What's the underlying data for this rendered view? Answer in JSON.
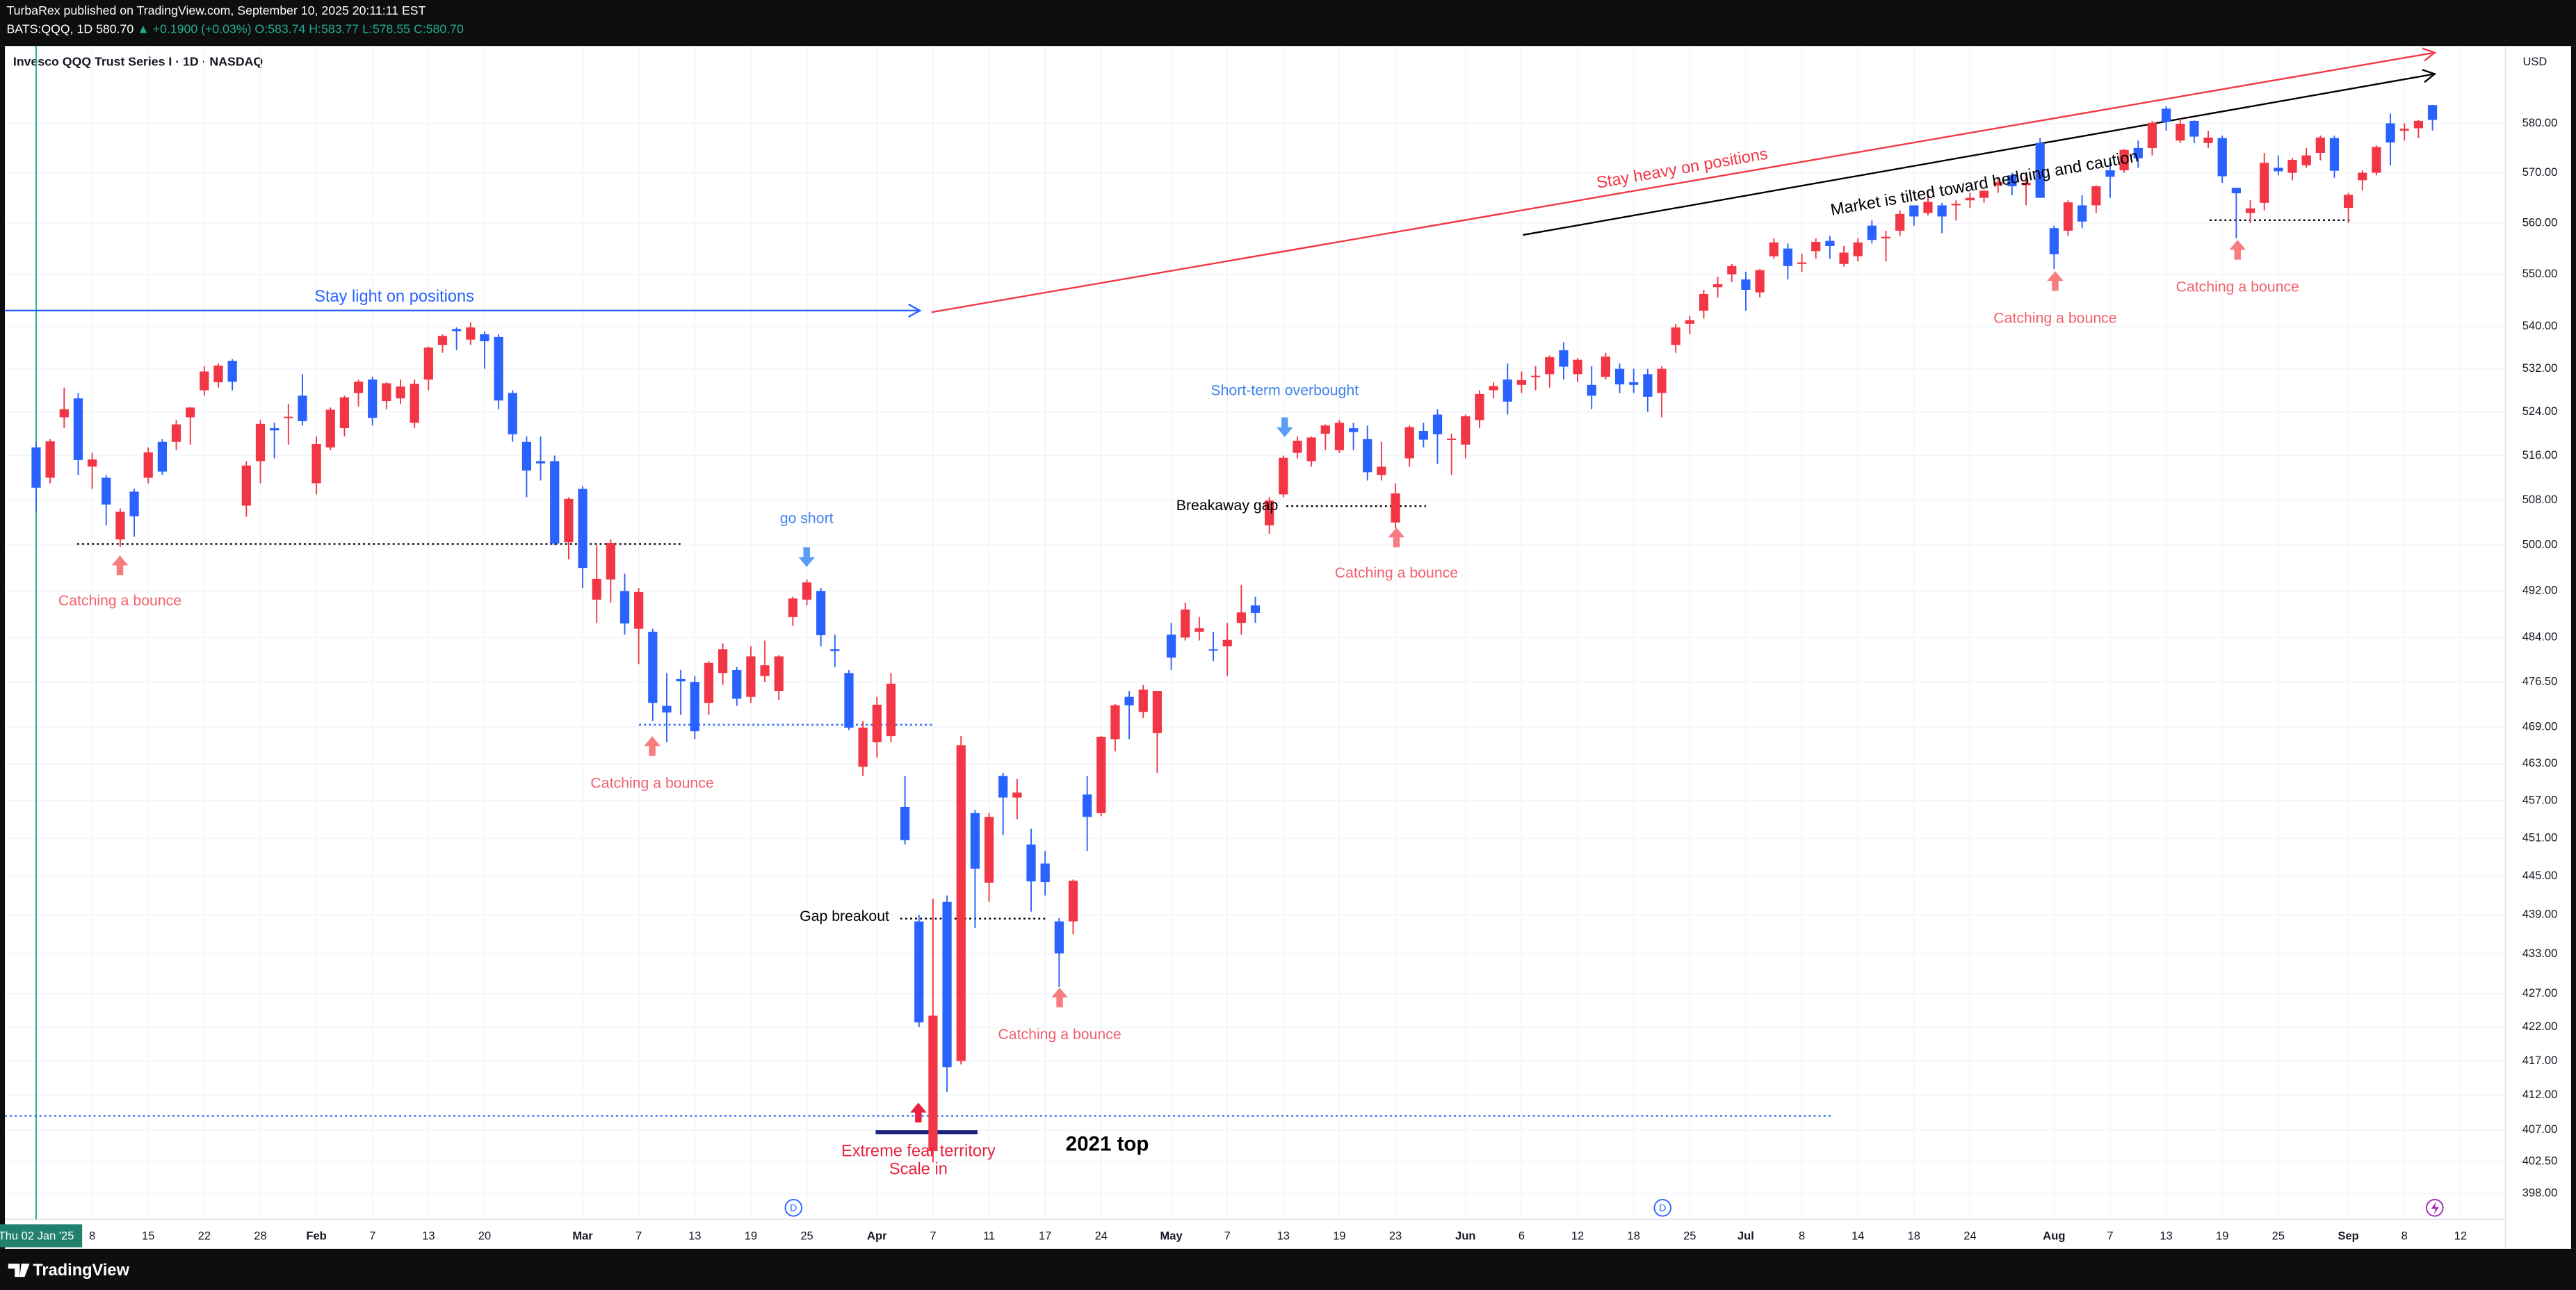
{
  "chart_data": {
    "type": "candlestick",
    "publisher": "TurbaRex published on TradingView.com, September 10, 2025 20:11:11 EST",
    "symbol": "BATS:QQQ, 1D",
    "last": "580.70",
    "change": "▲ +0.1900 (+0.03%)",
    "ohlc_header": [
      "O:583.74",
      "H:583.77",
      "L:578.55",
      "C:580.70"
    ],
    "title": "Invesco QQQ Trust Series I · 1D · NASDAQ",
    "currency": "USD",
    "brand": "TradingView",
    "up_color": "#f23645",
    "down_color": "#2962ff",
    "log_scale": true,
    "grid": true,
    "ylim": [
      394.4,
      596.0
    ],
    "yticks": [
      {
        "value": 580,
        "label": "580.00"
      },
      {
        "value": 570,
        "label": "570.00"
      },
      {
        "value": 560,
        "label": "560.00"
      },
      {
        "value": 550,
        "label": "550.00"
      },
      {
        "value": 540,
        "label": "540.00"
      },
      {
        "value": 532,
        "label": "532.00"
      },
      {
        "value": 524,
        "label": "524.00"
      },
      {
        "value": 516,
        "label": "516.00"
      },
      {
        "value": 508,
        "label": "508.00"
      },
      {
        "value": 500,
        "label": "500.00"
      },
      {
        "value": 492,
        "label": "492.00"
      },
      {
        "value": 484,
        "label": "484.00"
      },
      {
        "value": 476.5,
        "label": "476.50"
      },
      {
        "value": 469,
        "label": "469.00"
      },
      {
        "value": 463,
        "label": "463.00"
      },
      {
        "value": 457,
        "label": "457.00"
      },
      {
        "value": 451,
        "label": "451.00"
      },
      {
        "value": 445,
        "label": "445.00"
      },
      {
        "value": 439,
        "label": "439.00"
      },
      {
        "value": 433,
        "label": "433.00"
      },
      {
        "value": 427,
        "label": "427.00"
      },
      {
        "value": 422,
        "label": "422.00"
      },
      {
        "value": 417,
        "label": "417.00"
      },
      {
        "value": 412,
        "label": "412.00"
      },
      {
        "value": 407,
        "label": "407.00"
      },
      {
        "value": 402.5,
        "label": "402.50"
      },
      {
        "value": 398,
        "label": "398.00"
      }
    ],
    "categories": [
      "Thu 02 Jan '25",
      null,
      null,
      null,
      "8",
      null,
      null,
      null,
      "15",
      null,
      null,
      null,
      "22",
      null,
      null,
      null,
      "28",
      null,
      null,
      null,
      "Feb",
      null,
      null,
      null,
      "7",
      null,
      null,
      null,
      "13",
      null,
      null,
      null,
      "20",
      null,
      null,
      null,
      null,
      null,
      null,
      "Mar",
      null,
      null,
      null,
      "7",
      null,
      null,
      null,
      "13",
      null,
      null,
      null,
      "19",
      null,
      null,
      null,
      "25",
      null,
      null,
      null,
      null,
      "Apr",
      null,
      null,
      null,
      "7",
      null,
      null,
      null,
      "11",
      null,
      null,
      null,
      "17",
      null,
      null,
      null,
      "24",
      null,
      null,
      null,
      null,
      "May",
      null,
      null,
      null,
      "7",
      null,
      null,
      null,
      "13",
      null,
      null,
      null,
      "19",
      null,
      null,
      null,
      "23",
      null,
      null,
      null,
      null,
      "Jun",
      null,
      null,
      null,
      "6",
      null,
      null,
      null,
      "12",
      null,
      null,
      null,
      "18",
      null,
      null,
      null,
      "25",
      null,
      null,
      null,
      "Jul",
      null,
      null,
      null,
      "8",
      null,
      null,
      null,
      "14",
      null,
      null,
      null,
      "18",
      null,
      null,
      null,
      "24",
      null,
      null,
      null,
      null,
      null,
      "Aug",
      null,
      null,
      null,
      "7",
      null,
      null,
      null,
      "13",
      null,
      null,
      null,
      "19",
      null,
      null,
      null,
      "25",
      null,
      null,
      null,
      null,
      "Sep",
      null,
      null,
      null,
      "8",
      null,
      null,
      null,
      "12"
    ],
    "candles": [
      [
        517.5,
        518.5,
        506.0,
        510.2
      ],
      [
        512.0,
        519.0,
        511.0,
        518.6
      ],
      [
        523.0,
        528.5,
        521.0,
        524.5
      ],
      [
        526.5,
        527.5,
        512.5,
        515.2
      ],
      [
        514.0,
        516.5,
        510.0,
        515.3
      ],
      [
        512.0,
        512.5,
        503.5,
        507.2
      ],
      [
        501.0,
        506.5,
        499.7,
        505.9
      ],
      [
        509.5,
        510.0,
        501.5,
        505.1
      ],
      [
        512.0,
        517.5,
        511.0,
        516.6
      ],
      [
        518.5,
        519.0,
        512.5,
        513.1
      ],
      [
        518.5,
        522.5,
        517.0,
        521.7
      ],
      [
        523.0,
        524.9,
        518.0,
        524.8
      ],
      [
        528.0,
        532.5,
        527.0,
        531.5
      ],
      [
        529.5,
        533.0,
        528.5,
        532.6
      ],
      [
        533.5,
        533.8,
        528.0,
        529.6
      ],
      [
        507.0,
        515.0,
        505.0,
        514.2
      ],
      [
        515.0,
        522.5,
        511.0,
        521.8
      ],
      [
        521.0,
        522.0,
        515.5,
        520.6
      ],
      [
        523.0,
        525.5,
        518.0,
        523.1
      ],
      [
        527.0,
        531.0,
        521.5,
        522.3
      ],
      [
        511.0,
        519.5,
        509.0,
        518.1
      ],
      [
        517.5,
        524.8,
        517.0,
        524.4
      ],
      [
        521.0,
        527.0,
        519.5,
        526.7
      ],
      [
        527.5,
        530.0,
        525.0,
        529.6
      ],
      [
        530.0,
        530.5,
        521.5,
        522.9
      ],
      [
        526.0,
        529.5,
        524.5,
        529.3
      ],
      [
        526.5,
        530.0,
        525.5,
        528.7
      ],
      [
        522.0,
        530.0,
        521.0,
        529.2
      ],
      [
        530.0,
        536.2,
        528.0,
        536.0
      ],
      [
        536.5,
        538.5,
        535.0,
        538.2
      ],
      [
        539.5,
        539.8,
        535.5,
        539.1
      ],
      [
        537.5,
        540.8,
        536.5,
        539.8
      ],
      [
        538.5,
        539.0,
        532.0,
        537.2
      ],
      [
        538.0,
        538.5,
        524.5,
        526.1
      ],
      [
        527.5,
        528.0,
        518.5,
        519.9
      ],
      [
        518.5,
        519.5,
        508.5,
        513.3
      ],
      [
        515.0,
        519.5,
        511.5,
        514.6
      ],
      [
        515.0,
        516.0,
        500.0,
        500.3
      ],
      [
        500.5,
        508.5,
        497.5,
        508.2
      ],
      [
        510.0,
        510.5,
        492.5,
        496.0
      ],
      [
        490.5,
        500.0,
        486.5,
        494.1
      ],
      [
        494.0,
        501.0,
        490.0,
        500.4
      ],
      [
        492.0,
        495.0,
        484.5,
        486.4
      ],
      [
        485.5,
        492.5,
        479.5,
        491.8
      ],
      [
        485.0,
        485.5,
        470.0,
        473.0
      ],
      [
        472.5,
        478.0,
        466.5,
        471.4
      ],
      [
        477.0,
        478.5,
        471.0,
        476.6
      ],
      [
        476.5,
        477.5,
        467.0,
        468.3
      ],
      [
        473.0,
        480.0,
        471.0,
        479.7
      ],
      [
        478.0,
        483.0,
        476.0,
        482.0
      ],
      [
        478.5,
        479.0,
        472.5,
        473.7
      ],
      [
        474.0,
        482.5,
        473.0,
        480.8
      ],
      [
        477.5,
        483.5,
        476.5,
        479.3
      ],
      [
        475.0,
        481.0,
        473.5,
        480.8
      ],
      [
        487.5,
        491.0,
        486.0,
        490.7
      ],
      [
        490.5,
        494.0,
        489.5,
        493.5
      ],
      [
        492.0,
        492.5,
        482.5,
        484.4
      ],
      [
        482.0,
        484.5,
        479.0,
        481.7
      ],
      [
        478.0,
        478.5,
        468.5,
        468.9
      ],
      [
        462.5,
        470.0,
        461.0,
        468.9
      ],
      [
        466.5,
        474.0,
        464.0,
        472.7
      ],
      [
        467.5,
        478.0,
        466.5,
        476.2
      ],
      [
        456.0,
        461.0,
        450.0,
        450.7
      ],
      [
        438.0,
        439.0,
        422.0,
        422.7
      ],
      [
        404.0,
        441.5,
        402.4,
        423.7
      ],
      [
        441.0,
        442.0,
        412.5,
        416.1
      ],
      [
        417.0,
        467.5,
        416.5,
        466.0
      ],
      [
        455.0,
        455.5,
        437.0,
        446.2
      ],
      [
        444.0,
        455.0,
        441.0,
        454.4
      ],
      [
        461.0,
        461.5,
        451.5,
        457.5
      ],
      [
        457.5,
        460.5,
        454.0,
        458.3
      ],
      [
        450.0,
        452.5,
        439.5,
        444.2
      ],
      [
        447.0,
        449.0,
        442.0,
        444.1
      ],
      [
        438.0,
        438.5,
        428.0,
        433.1
      ],
      [
        438.0,
        444.5,
        436.0,
        444.3
      ],
      [
        458.0,
        461.0,
        449.0,
        454.4
      ],
      [
        455.0,
        467.5,
        454.5,
        467.4
      ],
      [
        467.0,
        472.8,
        465.0,
        472.6
      ],
      [
        474.0,
        475.0,
        467.0,
        472.6
      ],
      [
        471.5,
        476.0,
        470.5,
        475.2
      ],
      [
        468.0,
        475.0,
        461.5,
        475.0
      ],
      [
        484.5,
        486.5,
        478.5,
        480.6
      ],
      [
        484.0,
        490.0,
        483.5,
        488.8
      ],
      [
        485.0,
        487.5,
        483.5,
        485.6
      ],
      [
        482.0,
        485.0,
        480.0,
        481.9
      ],
      [
        482.5,
        486.5,
        477.5,
        483.6
      ],
      [
        486.5,
        493.0,
        484.5,
        488.3
      ],
      [
        489.5,
        491.0,
        486.5,
        488.2
      ],
      [
        503.5,
        508.5,
        502.0,
        507.9
      ],
      [
        509.0,
        516.0,
        508.5,
        515.6
      ],
      [
        516.5,
        519.5,
        515.5,
        518.7
      ],
      [
        515.0,
        519.5,
        514.0,
        519.3
      ],
      [
        520.0,
        521.7,
        517.0,
        521.5
      ],
      [
        517.0,
        522.5,
        516.5,
        522.0
      ],
      [
        521.0,
        522.0,
        517.0,
        520.3
      ],
      [
        519.0,
        521.5,
        511.5,
        513.0
      ],
      [
        512.5,
        518.5,
        511.5,
        514.0
      ],
      [
        504.0,
        511.0,
        503.0,
        509.2
      ],
      [
        515.5,
        521.5,
        514.0,
        521.2
      ],
      [
        520.5,
        522.0,
        517.5,
        518.9
      ],
      [
        523.5,
        524.5,
        514.5,
        519.9
      ],
      [
        519.0,
        520.0,
        512.5,
        519.1
      ],
      [
        518.0,
        523.5,
        515.5,
        523.2
      ],
      [
        522.5,
        528.0,
        521.0,
        527.3
      ],
      [
        528.0,
        529.5,
        526.5,
        528.8
      ],
      [
        530.0,
        533.0,
        523.5,
        525.9
      ],
      [
        529.0,
        531.5,
        527.5,
        529.9
      ],
      [
        530.5,
        532.5,
        528.0,
        530.7
      ],
      [
        531.0,
        534.5,
        528.5,
        534.2
      ],
      [
        535.5,
        537.0,
        530.0,
        532.4
      ],
      [
        531.0,
        534.0,
        529.5,
        533.7
      ],
      [
        529.0,
        532.5,
        524.5,
        527.0
      ],
      [
        530.5,
        535.0,
        530.0,
        534.3
      ],
      [
        532.0,
        533.0,
        527.5,
        529.1
      ],
      [
        529.5,
        532.0,
        527.5,
        529.0
      ],
      [
        531.0,
        532.0,
        524.0,
        526.8
      ],
      [
        527.5,
        532.5,
        523.0,
        532.0
      ],
      [
        536.5,
        540.5,
        535.0,
        539.8
      ],
      [
        540.5,
        542.0,
        538.5,
        541.2
      ],
      [
        543.0,
        547.0,
        541.5,
        546.2
      ],
      [
        547.5,
        549.5,
        545.5,
        548.1
      ],
      [
        550.0,
        552.0,
        548.5,
        551.6
      ],
      [
        549.0,
        550.5,
        543.0,
        547.0
      ],
      [
        546.5,
        551.0,
        545.5,
        550.8
      ],
      [
        553.5,
        557.0,
        553.0,
        556.2
      ],
      [
        555.0,
        556.0,
        549.0,
        551.6
      ],
      [
        552.0,
        554.0,
        550.5,
        552.3
      ],
      [
        554.5,
        557.0,
        553.0,
        556.3
      ],
      [
        556.5,
        557.5,
        553.0,
        555.5
      ],
      [
        552.0,
        555.5,
        551.5,
        554.2
      ],
      [
        553.5,
        557.0,
        552.5,
        556.2
      ],
      [
        559.5,
        560.5,
        556.0,
        556.7
      ],
      [
        557.0,
        558.5,
        552.5,
        557.3
      ],
      [
        558.5,
        562.5,
        557.5,
        561.8
      ],
      [
        563.5,
        563.5,
        559.5,
        561.3
      ],
      [
        562.0,
        566.5,
        561.5,
        564.2
      ],
      [
        563.5,
        564.0,
        558.0,
        561.3
      ],
      [
        563.5,
        564.5,
        560.5,
        563.8
      ],
      [
        564.5,
        566.0,
        563.0,
        565.0
      ],
      [
        565.0,
        566.5,
        564.0,
        566.4
      ],
      [
        567.5,
        569.0,
        566.0,
        568.1
      ],
      [
        569.5,
        570.0,
        565.5,
        567.3
      ],
      [
        567.5,
        569.5,
        563.5,
        568.0
      ],
      [
        576.0,
        577.0,
        565.0,
        565.0
      ],
      [
        559.0,
        559.5,
        551.0,
        553.9
      ],
      [
        558.5,
        564.5,
        557.5,
        564.1
      ],
      [
        563.5,
        565.5,
        559.0,
        560.3
      ],
      [
        563.5,
        567.5,
        562.0,
        567.3
      ],
      [
        570.5,
        572.5,
        565.0,
        569.2
      ],
      [
        570.5,
        574.8,
        570.0,
        574.6
      ],
      [
        575.0,
        576.5,
        571.0,
        572.9
      ],
      [
        575.0,
        580.5,
        573.5,
        580.1
      ],
      [
        583.0,
        583.5,
        578.5,
        580.3
      ],
      [
        576.5,
        581.0,
        576.0,
        579.9
      ],
      [
        580.5,
        580.6,
        576.0,
        577.3
      ],
      [
        576.0,
        578.5,
        575.0,
        577.1
      ],
      [
        577.0,
        577.5,
        568.0,
        569.3
      ],
      [
        567.0,
        567.0,
        557.0,
        565.9
      ],
      [
        562.0,
        564.5,
        560.0,
        562.9
      ],
      [
        564.0,
        574.0,
        562.5,
        572.0
      ],
      [
        571.0,
        573.5,
        569.5,
        570.3
      ],
      [
        570.0,
        573.0,
        568.5,
        572.6
      ],
      [
        571.5,
        575.0,
        571.0,
        573.5
      ],
      [
        574.0,
        577.5,
        572.5,
        577.1
      ],
      [
        577.0,
        577.5,
        569.0,
        570.4
      ],
      [
        563.0,
        566.0,
        560.0,
        565.6
      ],
      [
        568.5,
        570.5,
        566.5,
        570.0
      ],
      [
        570.0,
        575.5,
        569.5,
        575.2
      ],
      [
        580.0,
        582.0,
        571.5,
        576.1
      ],
      [
        578.5,
        580.0,
        576.5,
        578.9
      ],
      [
        579.0,
        580.7,
        577.0,
        580.5
      ],
      [
        583.74,
        583.77,
        578.55,
        580.7
      ],
      null,
      null
    ],
    "annotations": [
      "Stay light on positions",
      "Stay heavy on positions",
      "Market is tilted toward hedging and caution",
      "Catching a bounce",
      "go short",
      "Catching a bounce",
      "Gap breakout",
      "Extreme fear territory",
      "Scale in",
      "2021 top",
      "Catching a bounce",
      "Short-term overbought",
      "Breakaway gap",
      "Catching a bounce",
      "Catching a bounce",
      "Catching a bounce"
    ],
    "markers": [
      "D",
      "D"
    ]
  }
}
